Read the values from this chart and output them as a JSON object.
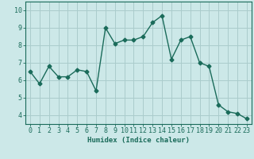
{
  "x": [
    0,
    1,
    2,
    3,
    4,
    5,
    6,
    7,
    8,
    9,
    10,
    11,
    12,
    13,
    14,
    15,
    16,
    17,
    18,
    19,
    20,
    21,
    22,
    23
  ],
  "y": [
    6.5,
    5.8,
    6.8,
    6.2,
    6.2,
    6.6,
    6.5,
    5.4,
    9.0,
    8.1,
    8.3,
    8.3,
    8.5,
    9.3,
    9.7,
    7.2,
    8.3,
    8.5,
    7.0,
    6.8,
    4.6,
    4.2,
    4.1,
    3.8
  ],
  "line_color": "#1a6b5a",
  "marker": "D",
  "marker_size": 2.5,
  "bg_color": "#cce8e8",
  "grid_color": "#aacccc",
  "xlabel": "Humidex (Indice chaleur)",
  "ylim": [
    3.5,
    10.5
  ],
  "xlim": [
    -0.5,
    23.5
  ],
  "yticks": [
    4,
    5,
    6,
    7,
    8,
    9,
    10
  ],
  "xticks": [
    0,
    1,
    2,
    3,
    4,
    5,
    6,
    7,
    8,
    9,
    10,
    11,
    12,
    13,
    14,
    15,
    16,
    17,
    18,
    19,
    20,
    21,
    22,
    23
  ],
  "xlabel_fontsize": 6.5,
  "tick_fontsize": 6,
  "line_width": 1.0
}
